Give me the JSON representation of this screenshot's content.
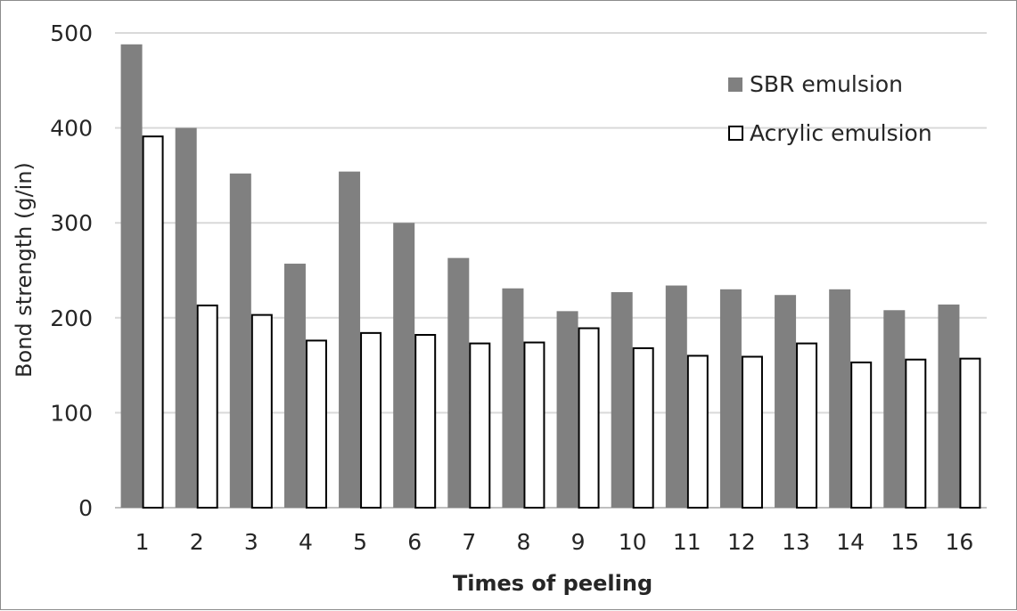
{
  "chart_data": {
    "type": "bar",
    "title": "",
    "xlabel": "Times of peeling",
    "ylabel": "Bond strength (g/in)",
    "ylim": [
      0,
      500
    ],
    "yticks": [
      0,
      100,
      200,
      300,
      400,
      500
    ],
    "grid": true,
    "legend_position": "top-right",
    "categories": [
      "1",
      "2",
      "3",
      "4",
      "5",
      "6",
      "7",
      "8",
      "9",
      "10",
      "11",
      "12",
      "13",
      "14",
      "15",
      "16"
    ],
    "series": [
      {
        "name": "SBR emulsion",
        "color": "#808080",
        "values": [
          488,
          400,
          352,
          257,
          354,
          300,
          263,
          231,
          207,
          227,
          234,
          230,
          224,
          230,
          208,
          214
        ]
      },
      {
        "name": "Acrylic emulsion",
        "color": "#ffffff",
        "values": [
          391,
          213,
          203,
          176,
          184,
          182,
          173,
          174,
          189,
          168,
          160,
          159,
          173,
          153,
          156,
          157
        ]
      }
    ]
  }
}
